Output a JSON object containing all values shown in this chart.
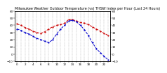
{
  "title": "Milwaukee Weather Outdoor Temperature (vs) THSW Index per Hour (Last 24 Hours)",
  "title_fontsize": 3.5,
  "background_color": "#ffffff",
  "plot_bg_color": "#ffffff",
  "grid_color": "#aaaaaa",
  "hours": [
    0,
    1,
    2,
    3,
    4,
    5,
    6,
    7,
    8,
    9,
    10,
    11,
    12,
    13,
    14,
    15,
    16,
    17,
    18,
    19,
    20,
    21,
    22,
    23
  ],
  "temp": [
    42,
    40,
    37,
    35,
    32,
    30,
    29,
    31,
    35,
    38,
    40,
    41,
    43,
    48,
    48,
    46,
    44,
    43,
    41,
    38,
    35,
    32,
    29,
    26
  ],
  "thsw": [
    35,
    33,
    30,
    28,
    25,
    22,
    20,
    18,
    16,
    20,
    28,
    35,
    40,
    46,
    47,
    45,
    40,
    34,
    26,
    16,
    8,
    2,
    -3,
    -8
  ],
  "temp_color": "#cc0000",
  "thsw_color": "#0000cc",
  "ylim": [
    -10,
    60
  ],
  "ytick_left": [
    -10,
    0,
    10,
    20,
    30,
    40,
    50,
    60
  ],
  "ytick_right": [
    -10,
    0,
    10,
    20,
    30,
    40,
    50,
    60
  ],
  "ylabel_fontsize": 3.0,
  "xlabel_fontsize": 3.0,
  "linewidth": 0.7,
  "marker": ".",
  "marker_size": 1.2,
  "linestyle": "--"
}
